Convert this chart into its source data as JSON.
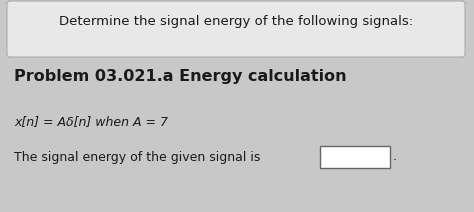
{
  "header_text": "Determine the signal energy of the following signals:",
  "problem_title": "Problem 03.021.a Energy calculation",
  "equation_line": "x[n] = Aδ[n] when A = 7",
  "answer_line": "The signal energy of the given signal is",
  "bg_color": "#c8c8c8",
  "header_bg": "#e8e8e8",
  "body_bg": "#d0d0d0",
  "box_color": "#ffffff",
  "text_color": "#1a1a1a",
  "header_font_size": 9.5,
  "title_font_size": 11.5,
  "body_font_size": 9.0
}
